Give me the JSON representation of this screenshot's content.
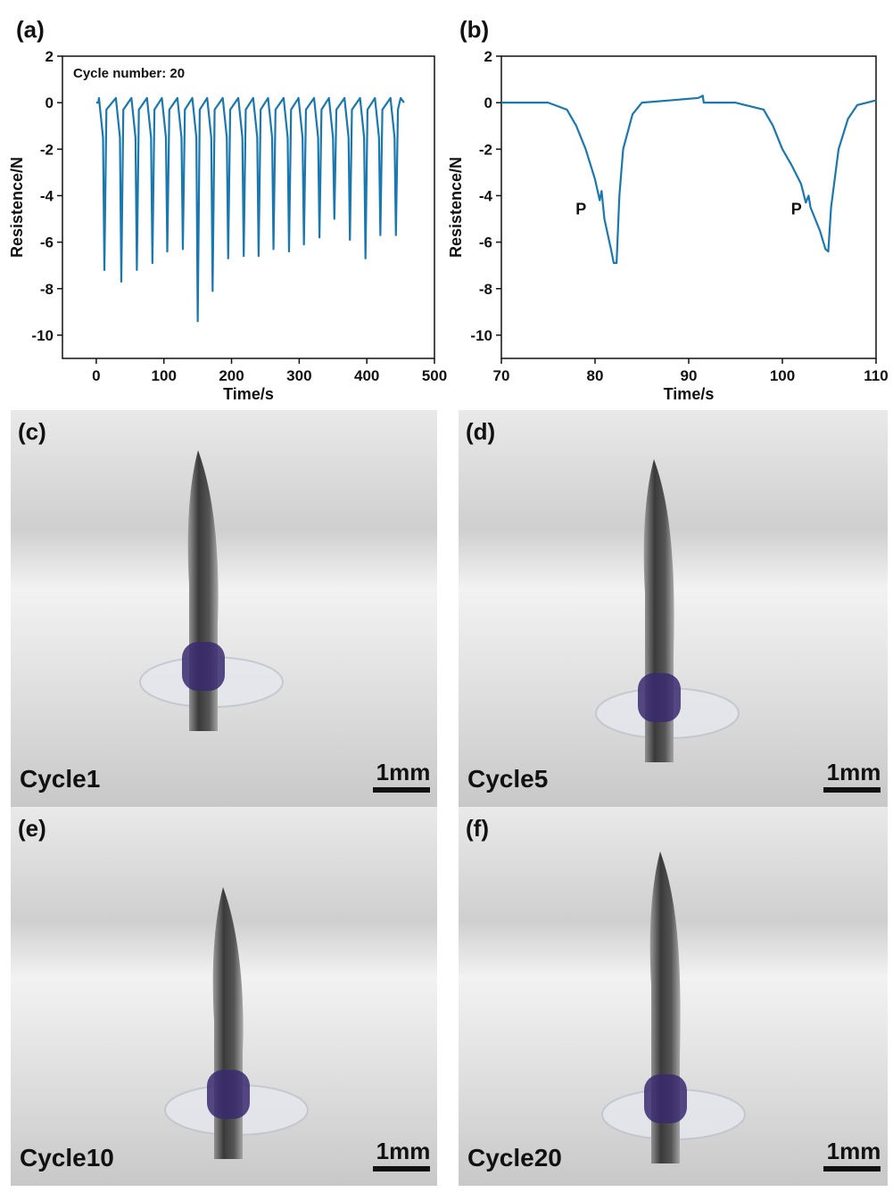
{
  "chart_data": [
    {
      "type": "line",
      "label": "(a)",
      "xlabel": "Time/s",
      "ylabel": "Resistence/N",
      "annotations": [
        {
          "text": "Cycle number: 20"
        }
      ],
      "color": "#1a78b0",
      "x": [
        0,
        3,
        4,
        10,
        12,
        15,
        29,
        35,
        37,
        40,
        52,
        58,
        60,
        63,
        75,
        81,
        83,
        86,
        97,
        103,
        105,
        108,
        120,
        126,
        128,
        131,
        142,
        148,
        150,
        153,
        164,
        170,
        172,
        175,
        187,
        193,
        195,
        198,
        210,
        216,
        218,
        221,
        232,
        238,
        240,
        243,
        254,
        260,
        262,
        265,
        277,
        283,
        285,
        288,
        299,
        305,
        307,
        310,
        322,
        328,
        330,
        333,
        344,
        350,
        352,
        355,
        367,
        373,
        375,
        378,
        390,
        396,
        398,
        401,
        412,
        418,
        420,
        423,
        435,
        441,
        443,
        446,
        450,
        455
      ],
      "values": [
        0,
        0,
        0.2,
        -1.5,
        -7.2,
        -0.3,
        0.2,
        -1.5,
        -7.7,
        -0.3,
        0.2,
        -1.5,
        -7.2,
        -0.3,
        0.2,
        -1.5,
        -6.9,
        -0.3,
        0.2,
        -1.5,
        -6.4,
        -0.3,
        0.2,
        -1.5,
        -6.3,
        -0.3,
        0.2,
        -1.5,
        -9.4,
        -0.3,
        0.2,
        -1.5,
        -8.1,
        -0.3,
        0.2,
        -1.5,
        -6.7,
        -0.3,
        0.2,
        -1.5,
        -6.6,
        -0.3,
        0.2,
        -1.5,
        -6.6,
        -0.3,
        0.2,
        -1.5,
        -6.3,
        -0.3,
        0.2,
        -1.5,
        -6.4,
        -0.3,
        0.2,
        -1.5,
        -6.1,
        -0.3,
        0.2,
        -1.5,
        -5.8,
        -0.3,
        0.2,
        -1.5,
        -5.0,
        -0.3,
        0.2,
        -1.5,
        -5.9,
        -0.3,
        0.2,
        -1.5,
        -6.7,
        -0.3,
        0.2,
        -1.5,
        -5.7,
        -0.3,
        0.2,
        -1.5,
        -5.7,
        -0.3,
        0.2,
        0
      ],
      "xlim": [
        -50,
        500
      ],
      "xticks": [
        0,
        100,
        200,
        300,
        400,
        500
      ],
      "ylim": [
        -11,
        2
      ],
      "yticks": [
        -10,
        -8,
        -6,
        -4,
        -2,
        0,
        2
      ]
    },
    {
      "type": "line",
      "label": "(b)",
      "xlabel": "Time/s",
      "ylabel": "Resistence/N",
      "annotations": [
        {
          "text": "P",
          "x": 78.5,
          "y": -4.8
        },
        {
          "text": "P",
          "x": 101.5,
          "y": -4.8
        }
      ],
      "color": "#1a78b0",
      "x": [
        70,
        75,
        77,
        78,
        79,
        80,
        80.5,
        80.7,
        81,
        81.7,
        82,
        82.3,
        82.6,
        83,
        84,
        85,
        88,
        91,
        91.5,
        91.6,
        95,
        98,
        99,
        100,
        101,
        102,
        102.5,
        102.8,
        103,
        104,
        104.6,
        104.9,
        105.2,
        106,
        107,
        108,
        110
      ],
      "values": [
        0,
        0,
        -0.3,
        -1,
        -2,
        -3.3,
        -4.2,
        -3.8,
        -5,
        -6.3,
        -6.9,
        -6.9,
        -4,
        -2,
        -0.5,
        0,
        0.1,
        0.2,
        0.3,
        0,
        0,
        -0.3,
        -1,
        -2,
        -2.7,
        -3.5,
        -4.3,
        -4,
        -4.5,
        -5.5,
        -6.3,
        -6.4,
        -4.5,
        -2,
        -0.7,
        -0.1,
        0.1
      ],
      "xlim": [
        70,
        110
      ],
      "xticks": [
        70,
        80,
        90,
        100,
        110
      ],
      "ylim": [
        -11,
        2
      ],
      "yticks": [
        -10,
        -8,
        -6,
        -4,
        -2,
        0,
        2
      ]
    }
  ],
  "photos": [
    {
      "label": "(c)",
      "caption": "Cycle1",
      "scale": "1mm"
    },
    {
      "label": "(d)",
      "caption": "Cycle5",
      "scale": "1mm"
    },
    {
      "label": "(e)",
      "caption": "Cycle10",
      "scale": "1mm"
    },
    {
      "label": "(f)",
      "caption": "Cycle20",
      "scale": "1mm"
    }
  ]
}
